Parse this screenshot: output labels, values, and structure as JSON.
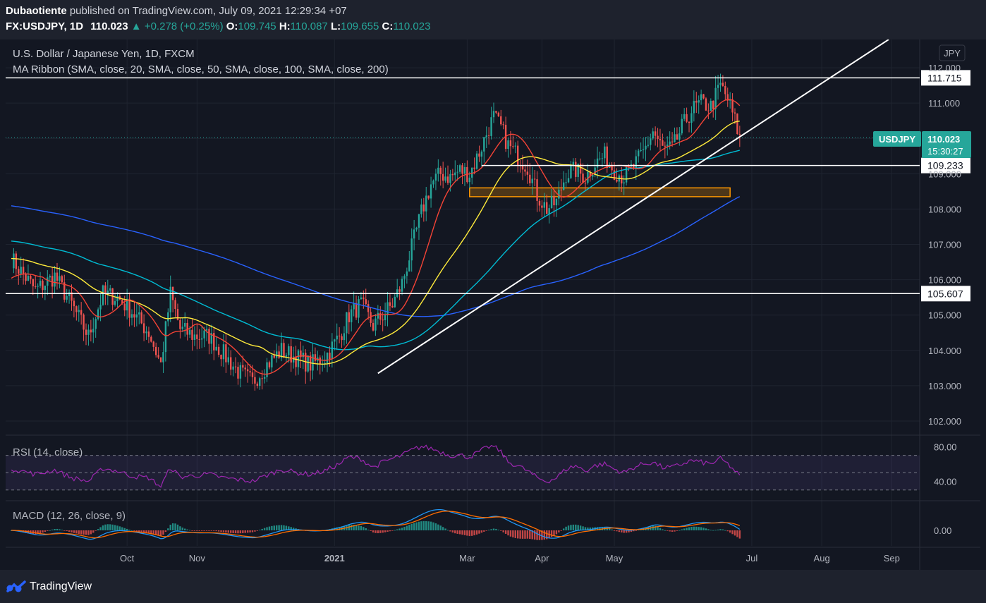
{
  "header": {
    "author": "Dubaotiente",
    "published_text": "published on TradingView.com, July 09, 2021 12:29:34 +07",
    "symbol": "FX:USDJPY, 1D",
    "last": "110.023",
    "change": "+0.278 (+0.25%)",
    "open_label": "O:",
    "open": "109.745",
    "high_label": "H:",
    "high": "110.087",
    "low_label": "L:",
    "low": "109.655",
    "close_label": "C:",
    "close": "110.023"
  },
  "legend": {
    "title": "U.S. Dollar / Japanese Yen, 1D, FXCM",
    "ribbon": "MA Ribbon (SMA, close, 20, SMA, close, 50, SMA, close, 100, SMA, close, 200)",
    "rsi": "RSI (14, close)",
    "macd": "MACD (12, 26, close, 9)"
  },
  "currency": "JPY",
  "price_badge": {
    "symbol": "USDJPY",
    "price": "110.023",
    "countdown": "15:30:27"
  },
  "footer": {
    "brand": "TradingView"
  },
  "colors": {
    "up": "#26a69a",
    "down": "#ef5350",
    "sma20": "#f44336",
    "sma50": "#ffeb3b",
    "sma100": "#00bcd4",
    "sma200": "#2962ff",
    "rsi": "#9c27b0",
    "macd": "#2196f3",
    "signal": "#ff6d00"
  },
  "chart_data": {
    "type": "candlestick",
    "x_ticks": [
      "Oct",
      "Nov",
      "2021",
      "Mar",
      "Apr",
      "May",
      "Jul",
      "Aug",
      "Sep"
    ],
    "y_ticks": [
      "102.000",
      "103.000",
      "104.000",
      "105.000",
      "106.000",
      "107.000",
      "108.000",
      "109.000",
      "110.000",
      "111.000",
      "112.000"
    ],
    "ylim": [
      101.7,
      112.8
    ],
    "horizontal_levels": [
      "111.715",
      "109.233",
      "105.607"
    ],
    "support_zone": [
      108.35,
      108.6
    ],
    "rsi_ticks": [
      "80.00",
      "40.00"
    ],
    "rsi_bands": [
      30,
      50,
      70
    ],
    "macd_ticks": [
      "0.00"
    ],
    "price_anchors": [
      [
        0,
        106.6
      ],
      [
        10,
        105.7
      ],
      [
        18,
        106.1
      ],
      [
        25,
        105.3
      ],
      [
        32,
        104.4
      ],
      [
        38,
        105.6
      ],
      [
        44,
        105.5
      ],
      [
        50,
        105.1
      ],
      [
        57,
        104.5
      ],
      [
        62,
        103.6
      ],
      [
        66,
        105.6
      ],
      [
        70,
        104.6
      ],
      [
        76,
        104.4
      ],
      [
        82,
        104.4
      ],
      [
        88,
        103.9
      ],
      [
        94,
        103.4
      ],
      [
        100,
        103.1
      ],
      [
        106,
        103.6
      ],
      [
        112,
        104.0
      ],
      [
        118,
        103.8
      ],
      [
        124,
        103.6
      ],
      [
        130,
        103.8
      ],
      [
        136,
        104.4
      ],
      [
        140,
        105.0
      ],
      [
        145,
        105.3
      ],
      [
        150,
        104.7
      ],
      [
        154,
        105.0
      ],
      [
        158,
        105.3
      ],
      [
        162,
        105.9
      ],
      [
        166,
        106.9
      ],
      [
        170,
        107.9
      ],
      [
        174,
        108.7
      ],
      [
        178,
        109.0
      ],
      [
        182,
        108.9
      ],
      [
        186,
        109.1
      ],
      [
        190,
        109.0
      ],
      [
        194,
        109.6
      ],
      [
        198,
        110.3
      ],
      [
        200,
        110.6
      ],
      [
        203,
        110.3
      ],
      [
        206,
        109.8
      ],
      [
        210,
        109.5
      ],
      [
        214,
        109.2
      ],
      [
        218,
        108.4
      ],
      [
        222,
        108.0
      ],
      [
        226,
        108.2
      ],
      [
        230,
        109.0
      ],
      [
        234,
        109.1
      ],
      [
        238,
        108.9
      ],
      [
        242,
        109.3
      ],
      [
        246,
        109.5
      ],
      [
        250,
        109.1
      ],
      [
        254,
        108.9
      ],
      [
        258,
        109.2
      ],
      [
        262,
        109.6
      ],
      [
        266,
        110.2
      ],
      [
        270,
        109.7
      ],
      [
        274,
        109.7
      ],
      [
        278,
        110.3
      ],
      [
        282,
        110.8
      ],
      [
        286,
        111.0
      ],
      [
        290,
        110.9
      ],
      [
        294,
        111.5
      ],
      [
        297,
        111.1
      ],
      [
        300,
        110.5
      ],
      [
        302,
        110.0
      ]
    ],
    "sma_start_values": {
      "sma20": 106.0,
      "sma50": 106.6,
      "sma100": 107.1,
      "sma200": 108.1
    },
    "rsi_anchors": [
      [
        0,
        55
      ],
      [
        10,
        48
      ],
      [
        18,
        53
      ],
      [
        25,
        44
      ],
      [
        32,
        40
      ],
      [
        38,
        55
      ],
      [
        44,
        52
      ],
      [
        50,
        46
      ],
      [
        57,
        44
      ],
      [
        62,
        34
      ],
      [
        66,
        56
      ],
      [
        70,
        45
      ],
      [
        82,
        48
      ],
      [
        88,
        44
      ],
      [
        94,
        42
      ],
      [
        100,
        40
      ],
      [
        106,
        47
      ],
      [
        112,
        54
      ],
      [
        118,
        50
      ],
      [
        124,
        48
      ],
      [
        130,
        52
      ],
      [
        136,
        60
      ],
      [
        140,
        68
      ],
      [
        145,
        66
      ],
      [
        150,
        56
      ],
      [
        154,
        62
      ],
      [
        158,
        66
      ],
      [
        162,
        70
      ],
      [
        166,
        76
      ],
      [
        170,
        80
      ],
      [
        174,
        78
      ],
      [
        178,
        74
      ],
      [
        182,
        70
      ],
      [
        186,
        70
      ],
      [
        190,
        68
      ],
      [
        194,
        74
      ],
      [
        198,
        80
      ],
      [
        200,
        80
      ],
      [
        203,
        74
      ],
      [
        206,
        62
      ],
      [
        210,
        58
      ],
      [
        214,
        52
      ],
      [
        218,
        44
      ],
      [
        222,
        40
      ],
      [
        226,
        44
      ],
      [
        230,
        54
      ],
      [
        234,
        58
      ],
      [
        238,
        52
      ],
      [
        242,
        58
      ],
      [
        246,
        60
      ],
      [
        250,
        54
      ],
      [
        254,
        50
      ],
      [
        258,
        56
      ],
      [
        262,
        60
      ],
      [
        266,
        62
      ],
      [
        270,
        56
      ],
      [
        274,
        56
      ],
      [
        278,
        60
      ],
      [
        282,
        64
      ],
      [
        286,
        62
      ],
      [
        290,
        60
      ],
      [
        294,
        66
      ],
      [
        297,
        60
      ],
      [
        300,
        52
      ],
      [
        302,
        46
      ]
    ]
  }
}
